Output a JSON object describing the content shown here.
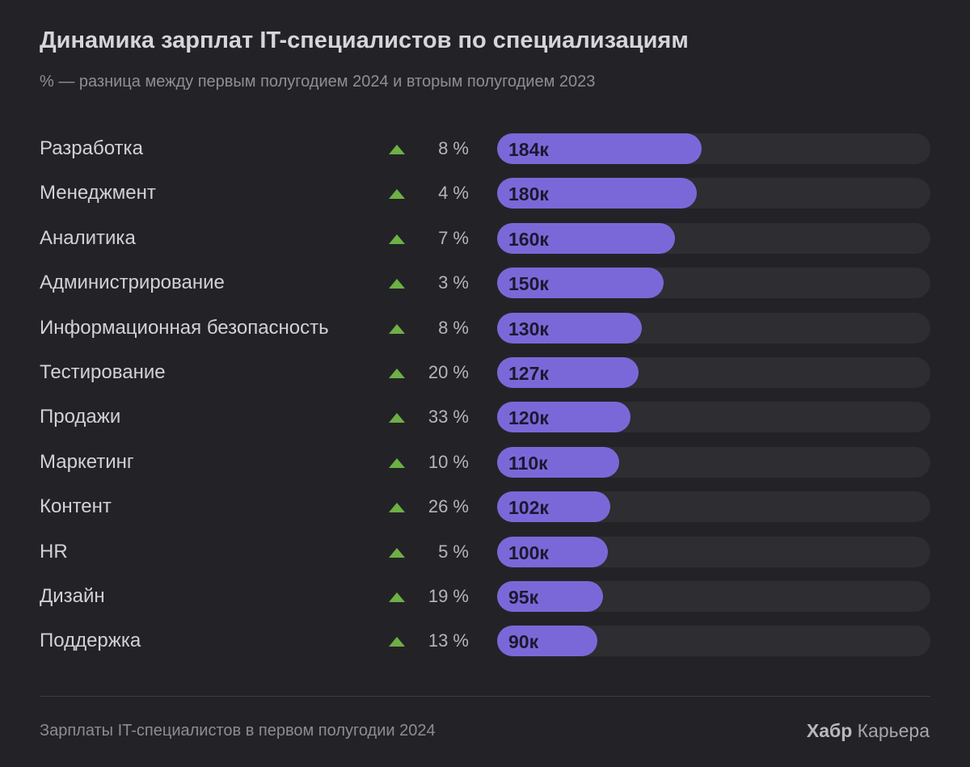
{
  "chart_data": {
    "type": "bar",
    "title": "Динамика зарплат IT-специалистов по специализациям",
    "subtitle": "% — разница между первым полугодием 2024 и вторым полугодием 2023",
    "categories": [
      "Разработка",
      "Менеджмент",
      "Аналитика",
      "Администрирование",
      "Информационная безопасность",
      "Тестирование",
      "Продажи",
      "Маркетинг",
      "Контент",
      "HR",
      "Дизайн",
      "Поддержка"
    ],
    "values": [
      184,
      180,
      160,
      150,
      130,
      127,
      120,
      110,
      102,
      100,
      95,
      90
    ],
    "value_labels": [
      "184к",
      "180к",
      "160к",
      "150к",
      "130к",
      "127к",
      "120к",
      "110к",
      "102к",
      "100к",
      "95к",
      "90к"
    ],
    "change_labels": [
      "8 %",
      "4 %",
      "7 %",
      "3 %",
      "8 %",
      "20 %",
      "33 %",
      "10 %",
      "26 %",
      "5 %",
      "19 %",
      "13 %"
    ],
    "change_direction": "up",
    "xlim": [
      0,
      390
    ],
    "orientation": "horizontal",
    "colors": {
      "bar": "#7b68d8",
      "track": "#2d2d32",
      "up_arrow": "#6db045"
    }
  },
  "footer": {
    "note": "Зарплаты IT-специалистов в первом полугодии 2024",
    "brand_bold": "Хабр",
    "brand_rest": " Карьера"
  }
}
